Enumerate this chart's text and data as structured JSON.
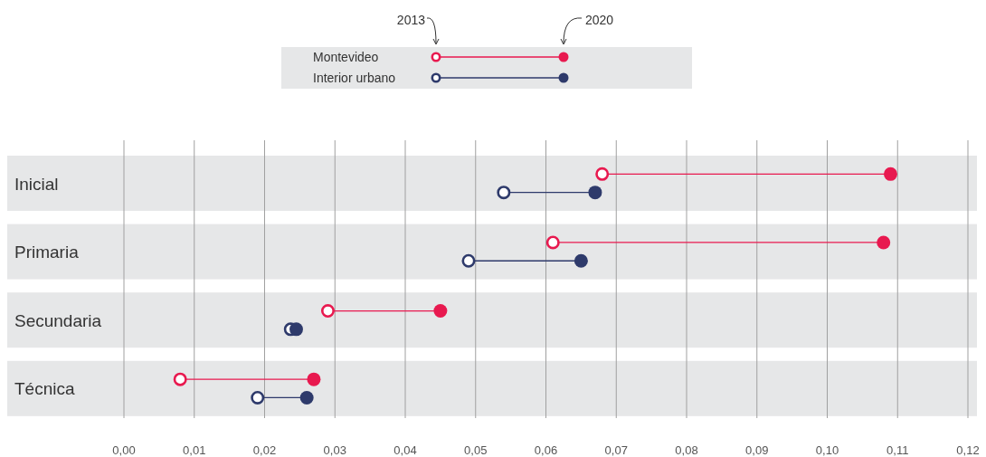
{
  "chart_data": {
    "type": "scatter",
    "orientation": "horizontal",
    "categories": [
      "Inicial",
      "Primaria",
      "Secundaria",
      "Técnica"
    ],
    "series": [
      {
        "color": "#e8194f",
        "values": [
          0.068,
          0.061,
          0.029,
          0.008
        ]
      },
      {
        "name": "Montevideo",
        "color": "#e8194f",
        "values": [
          0.109,
          0.108,
          0.045,
          0.027
        ]
      },
      {
        "color": "#2e3a6b",
        "values": [
          0.054,
          0.049,
          0.0237,
          0.019
        ]
      },
      {
        "name": "Interior urbano",
        "color": "#2e3a6b",
        "values": [
          0.067,
          0.065,
          0.0245,
          0.026
        ]
      }
    ],
    "xlim": [
      0,
      0.12
    ],
    "xticks": [
      {
        "value": 0,
        "label": "0,00"
      },
      {
        "value": 0.01,
        "label": "0,01"
      },
      {
        "value": 0.02,
        "label": "0,02"
      },
      {
        "value": 0.03,
        "label": "0,03"
      },
      {
        "value": 0.04,
        "label": "0,04"
      },
      {
        "value": 0.05,
        "label": "0,05"
      },
      {
        "value": 0.06,
        "label": "0,06"
      },
      {
        "value": 0.07,
        "label": "0,07"
      },
      {
        "value": 0.08,
        "label": "0,08"
      },
      {
        "value": 0.09,
        "label": "0,09"
      },
      {
        "value": 0.1,
        "label": "0,10"
      },
      {
        "value": 0.11,
        "label": "0,11"
      },
      {
        "value": 0.12,
        "label": "0,12"
      }
    ],
    "bands": [
      {
        "axis": "y",
        "from": "Inicial",
        "to": "Inicial",
        "color": "#e6e7e8"
      },
      {
        "axis": "y",
        "from": "Primaria",
        "to": "Primaria",
        "color": "#e6e7e8"
      },
      {
        "axis": "y",
        "from": "Secundaria",
        "to": "Secundaria",
        "color": "#e6e7e8"
      },
      {
        "axis": "y",
        "from": "Técnica",
        "to": "Técnica",
        "color": "#e6e7e8"
      }
    ],
    "grid": "x",
    "legend": "top",
    "marker": "circle",
    "annotations": [
      "2013",
      "2020"
    ]
  }
}
